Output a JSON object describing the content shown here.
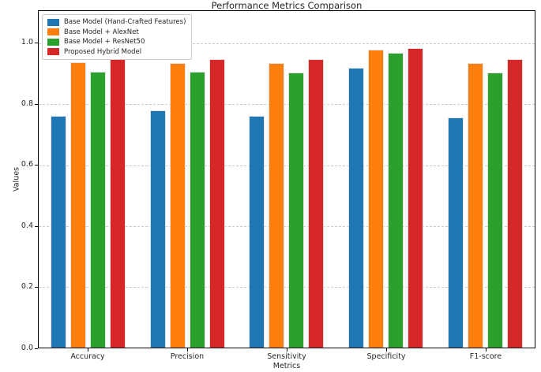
{
  "figure": {
    "background": "#ffffff",
    "axis_color": "#000000",
    "gridline_color": "#c9c9c9"
  },
  "chart_data": {
    "type": "bar",
    "title": "Performance Metrics Comparison",
    "xlabel": "Metrics",
    "ylabel": "Values",
    "categories": [
      "Accuracy",
      "Precision",
      "Sensitivity",
      "Specificity",
      "F1-score"
    ],
    "series": [
      {
        "name": "Base Model (Hand-Crafted Features)",
        "color": "#1f77b4",
        "values": [
          0.762,
          0.781,
          0.762,
          0.921,
          0.757
        ]
      },
      {
        "name": "Base Model + AlexNet",
        "color": "#ff7f0e",
        "values": [
          0.938,
          0.936,
          0.936,
          0.981,
          0.936
        ]
      },
      {
        "name": "Base Model + ResNet50",
        "color": "#2ca02c",
        "values": [
          0.907,
          0.908,
          0.906,
          0.97,
          0.906
        ]
      },
      {
        "name": "Proposed Hybrid Model",
        "color": "#d62728",
        "values": [
          0.95,
          0.948,
          0.948,
          0.985,
          0.948
        ]
      }
    ],
    "ylim": [
      0,
      1.107
    ],
    "ytick_labels": [
      "0.0",
      "0.2",
      "0.4",
      "0.6",
      "0.8",
      "1.0"
    ],
    "grid": "horizontal-dashed",
    "legend_position": "upper-left"
  }
}
